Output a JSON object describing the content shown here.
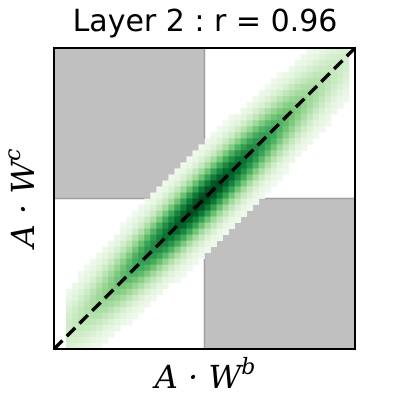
{
  "chart_data": {
    "type": "heatmap",
    "title": "Layer 2 : r = 0.96",
    "xlabel": "A · W",
    "xlabel_sup": "b",
    "ylabel": "A · W",
    "ylabel_sup": "c",
    "xlim": [
      -1,
      1
    ],
    "ylim": [
      -1,
      1
    ],
    "correlation_r": 0.96,
    "ticks_shown": false,
    "quadrant_shading": {
      "shaded": [
        "top-left",
        "bottom-right"
      ],
      "color": "#c0c0c0"
    },
    "identity_line": {
      "style": "dashed",
      "color": "#000000",
      "from": [
        -1,
        -1
      ],
      "to": [
        1,
        1
      ]
    },
    "density": {
      "colormap": "Greens",
      "x_mean": 0.0,
      "y_mean": 0.0,
      "x_sd": 0.5,
      "y_sd": 0.5,
      "x_range": [
        -0.9,
        0.95
      ]
    }
  },
  "colors": {
    "greens_low": "#e8f5e3",
    "greens_mid": "#74c476",
    "greens_high": "#00441b",
    "quadrant_gray": "#c0c0c0",
    "frame": "#000000"
  }
}
